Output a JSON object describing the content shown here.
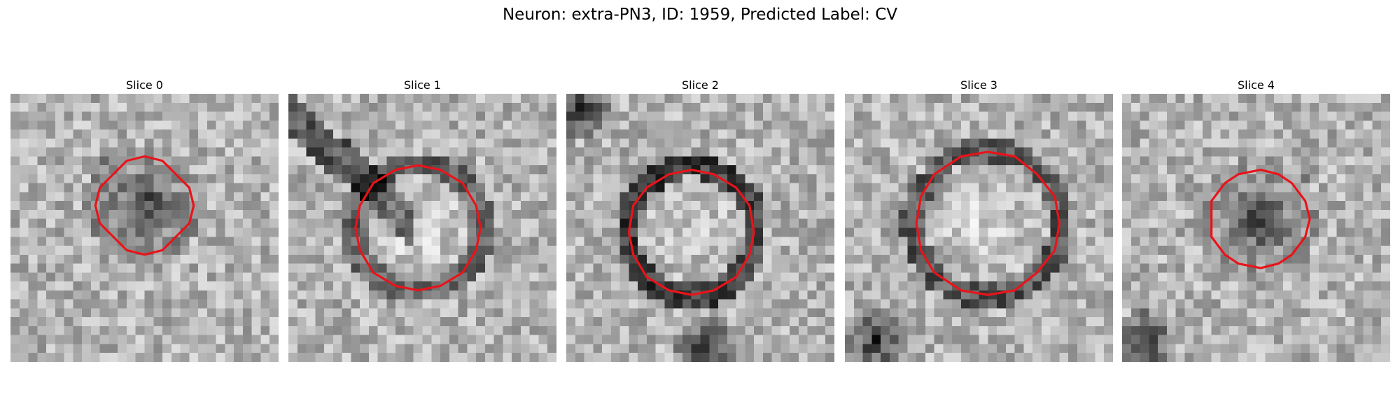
{
  "title": "Neuron: extra-PN3, ID: 1959, Predicted Label: CV",
  "panels": [
    {
      "title": "Slice 0"
    },
    {
      "title": "Slice 1"
    },
    {
      "title": "Slice 2"
    },
    {
      "title": "Slice 3"
    },
    {
      "title": "Slice 4"
    }
  ]
}
